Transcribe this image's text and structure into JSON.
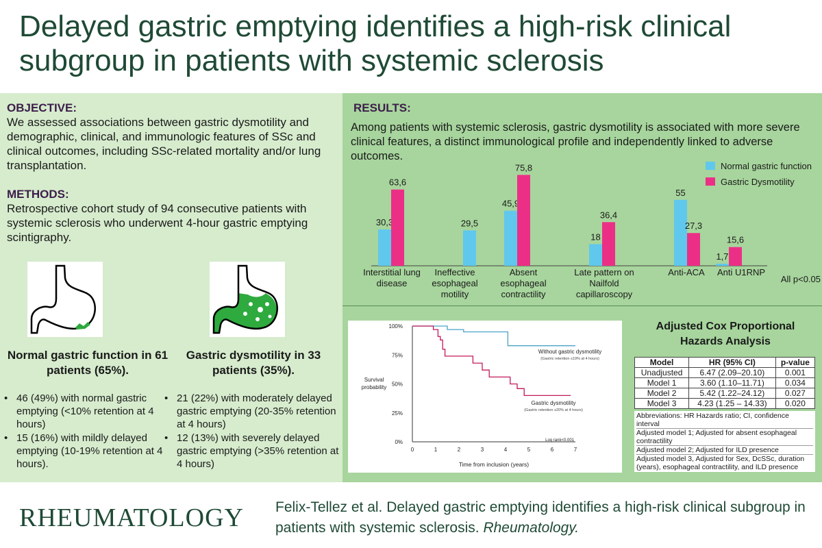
{
  "title": "Delayed gastric emptying identifies a high-risk clinical subgroup in patients with systemic sclerosis",
  "objective": {
    "heading": "OBJECTIVE:",
    "text": "We assessed associations between gastric dysmotility and demographic, clinical, and immunologic features of SSc and clinical outcomes, including SSc-related mortality and/or lung transplantation."
  },
  "methods": {
    "heading": "METHODS:",
    "text": "Retrospective cohort study of 94 consecutive patients with systemic sclerosis who underwent 4-hour gastric emptying scintigraphy."
  },
  "groups": [
    {
      "title": "Normal gastric function in 61 patients (65%).",
      "bullets": [
        "46 (49%) with normal gastric emptying (<10% retention at 4 hours)",
        "15 (16%) with mildly delayed emptying (10-19% retention at 4 hours)."
      ]
    },
    {
      "title": "Gastric dysmotility in 33 patients (35%).",
      "bullets": [
        "21 (22%) with moderately delayed gastric emptying (20-35% retention at 4 hours)",
        "12 (13%) with severely delayed gastric emptying (>35% retention at 4 hours)"
      ]
    }
  ],
  "results": {
    "heading": "RESULTS:",
    "text": "Among patients with systemic sclerosis, gastric dysmotility is associated with more severe clinical features, a distinct immunological profile and independently linked to adverse outcomes."
  },
  "chart_data": [
    {
      "type": "bar",
      "categories": [
        "Interstitial lung disease",
        "Ineffective esophageal motility",
        "Absent esophageal contractility",
        "Late pattern on Nailfold capillaroscopy",
        "Anti-ACA",
        "Anti U1RNP"
      ],
      "series": [
        {
          "name": "Normal gastric function",
          "values": [
            30.3,
            29.5,
            45.9,
            18,
            55,
            1.7
          ],
          "labels": [
            "30,3",
            "29,5",
            "45,9",
            "18",
            "55",
            "1,7"
          ],
          "color": "#5fc8ec"
        },
        {
          "name": "Gastric Dysmotility",
          "values": [
            63.6,
            null,
            75.8,
            36.4,
            27.3,
            15.6
          ],
          "labels": [
            "63,6",
            "",
            "75,8",
            "36,4",
            "27,3",
            "15,6"
          ],
          "color": "#ec2f86"
        }
      ],
      "annotation": "All p<0.05",
      "ylim": [
        0,
        80
      ],
      "grid": false,
      "legend": "top-right"
    },
    {
      "type": "line",
      "ylabel": "Survival probability",
      "xlabel": "Time from inclusion (years)",
      "x_ticks": [
        "0",
        "1",
        "2",
        "3",
        "4",
        "5",
        "6",
        "7"
      ],
      "y_ticks": [
        "0%",
        "25%",
        "50%",
        "75%",
        "100%"
      ],
      "xlim": [
        0,
        7
      ],
      "ylim": [
        0,
        100
      ],
      "annotation": "Log rank<0.001",
      "series": [
        {
          "name": "Without gastric dysmotility",
          "sublabel": "(Gastric retention ≤19% at 4 hours)",
          "color": "#4aa3c8",
          "points": [
            [
              0,
              100
            ],
            [
              1.5,
              100
            ],
            [
              1.5,
              97
            ],
            [
              2.2,
              97
            ],
            [
              2.2,
              95
            ],
            [
              4.1,
              95
            ],
            [
              4.1,
              83
            ],
            [
              7,
              83
            ]
          ]
        },
        {
          "name": "Gastric dysmotility",
          "sublabel": "(Gastric retention ≥20% at 4 hours)",
          "color": "#c2185b",
          "points": [
            [
              0,
              100
            ],
            [
              0.9,
              100
            ],
            [
              0.9,
              97
            ],
            [
              1.1,
              97
            ],
            [
              1.1,
              91
            ],
            [
              1.2,
              91
            ],
            [
              1.2,
              88
            ],
            [
              1.3,
              88
            ],
            [
              1.3,
              80
            ],
            [
              1.4,
              80
            ],
            [
              1.4,
              74
            ],
            [
              2.6,
              74
            ],
            [
              2.6,
              68
            ],
            [
              3,
              68
            ],
            [
              3,
              62
            ],
            [
              3.3,
              62
            ],
            [
              3.3,
              56
            ],
            [
              4.2,
              56
            ],
            [
              4.2,
              50
            ],
            [
              4.5,
              50
            ],
            [
              4.5,
              46
            ],
            [
              4.8,
              46
            ],
            [
              4.8,
              40
            ],
            [
              6.8,
              40
            ]
          ]
        }
      ]
    }
  ],
  "cox": {
    "title": "Adjusted Cox Proportional Hazards Analysis",
    "headers": [
      "Model",
      "HR (95% CI)",
      "p-value"
    ],
    "rows": [
      [
        "Unadjusted",
        "6.47 (2.09–20.10)",
        "0.001"
      ],
      [
        "Model 1",
        "3.60 (1.10–11.71)",
        "0.034"
      ],
      [
        "Model 2",
        "5.42 (1.22–24.12)",
        "0.027"
      ],
      [
        "Model 3",
        "4.23 (1.25 – 14.33)",
        "0.020"
      ]
    ],
    "notes": [
      "Abbreviations: HR Hazards ratio; CI, confidence interval",
      "Adjusted model 1; Adjusted for absent esophageal contractility",
      "Adjusted model 2; Adjusted for ILD presence",
      "Adjusted model 3, Adjusted for Sex, DcSSc, duration (years), esophageal contractility, and ILD presence"
    ]
  },
  "footer": {
    "journal": "RHEUMATOLOGY",
    "citation_main": "Felix-Tellez et al. Delayed gastric emptying identifies a high-risk clinical subgroup in patients with systemic sclerosis.",
    "citation_journal": "Rheumatology."
  }
}
